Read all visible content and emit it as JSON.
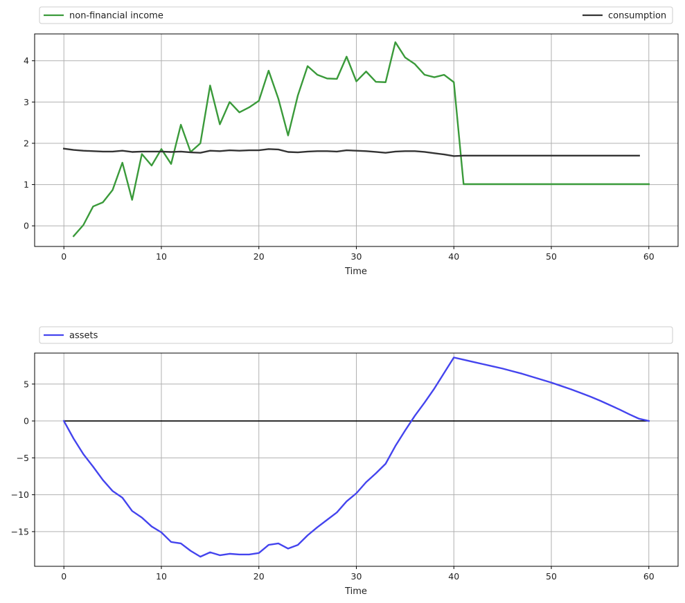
{
  "chart_data": [
    {
      "type": "line",
      "xlabel": "Time",
      "ylabel": "",
      "xlim": [
        -3,
        63
      ],
      "ylim": [
        -0.5,
        4.65
      ],
      "xticks": [
        0,
        10,
        20,
        30,
        40,
        50,
        60
      ],
      "yticks": [
        0,
        1,
        2,
        3,
        4
      ],
      "grid": true,
      "legend_placement": "above",
      "series": [
        {
          "name": "non-financial income",
          "color": "#3a9a3a",
          "x": [
            1,
            2,
            3,
            4,
            5,
            6,
            7,
            8,
            9,
            10,
            11,
            12,
            13,
            14,
            15,
            16,
            17,
            18,
            19,
            20,
            21,
            22,
            23,
            24,
            25,
            26,
            27,
            28,
            29,
            30,
            31,
            32,
            33,
            34,
            35,
            36,
            37,
            38,
            39,
            40,
            41,
            42,
            43,
            44,
            45,
            46,
            47,
            48,
            49,
            50,
            51,
            52,
            53,
            54,
            55,
            56,
            57,
            58,
            59,
            60
          ],
          "values": [
            -0.25,
            0.02,
            0.47,
            0.57,
            0.87,
            1.53,
            0.63,
            1.74,
            1.46,
            1.86,
            1.5,
            2.45,
            1.79,
            2.0,
            3.4,
            2.46,
            3.0,
            2.75,
            2.87,
            3.03,
            3.76,
            3.08,
            2.19,
            3.16,
            3.87,
            3.66,
            3.57,
            3.56,
            4.1,
            3.5,
            3.74,
            3.49,
            3.48,
            4.45,
            4.08,
            3.92,
            3.66,
            3.6,
            3.66,
            3.48,
            1.01,
            1.01,
            1.01,
            1.01,
            1.01,
            1.01,
            1.01,
            1.01,
            1.01,
            1.01,
            1.01,
            1.01,
            1.01,
            1.01,
            1.01,
            1.01,
            1.01,
            1.01,
            1.01,
            1.01
          ]
        },
        {
          "name": "consumption",
          "color": "#333333",
          "x": [
            0,
            1,
            2,
            3,
            4,
            5,
            6,
            7,
            8,
            9,
            10,
            11,
            12,
            13,
            14,
            15,
            16,
            17,
            18,
            19,
            20,
            21,
            22,
            23,
            24,
            25,
            26,
            27,
            28,
            29,
            30,
            31,
            32,
            33,
            34,
            35,
            36,
            37,
            38,
            39,
            40,
            41,
            42,
            43,
            44,
            45,
            46,
            47,
            48,
            49,
            50,
            51,
            52,
            53,
            54,
            55,
            56,
            57,
            58,
            59
          ],
          "values": [
            1.87,
            1.84,
            1.82,
            1.81,
            1.8,
            1.8,
            1.82,
            1.79,
            1.8,
            1.8,
            1.8,
            1.79,
            1.8,
            1.78,
            1.77,
            1.82,
            1.81,
            1.83,
            1.82,
            1.83,
            1.83,
            1.86,
            1.85,
            1.79,
            1.78,
            1.8,
            1.81,
            1.81,
            1.8,
            1.83,
            1.82,
            1.81,
            1.79,
            1.77,
            1.8,
            1.81,
            1.81,
            1.79,
            1.76,
            1.73,
            1.69,
            1.7,
            1.7,
            1.7,
            1.7,
            1.7,
            1.7,
            1.7,
            1.7,
            1.7,
            1.7,
            1.7,
            1.7,
            1.7,
            1.7,
            1.7,
            1.7,
            1.7,
            1.7,
            1.7
          ]
        }
      ]
    },
    {
      "type": "line",
      "xlabel": "Time",
      "ylabel": "",
      "xlim": [
        -3,
        63
      ],
      "ylim": [
        -19.7,
        9.2
      ],
      "xticks": [
        0,
        10,
        20,
        30,
        40,
        50,
        60
      ],
      "yticks": [
        5,
        0,
        -5,
        -10,
        -15
      ],
      "tick_labels_y": [
        "5",
        "0",
        "−5",
        "−10",
        "−15"
      ],
      "grid": true,
      "legend_placement": "above",
      "reference_line": {
        "y": 0,
        "color": "#000000"
      },
      "series": [
        {
          "name": "assets",
          "color": "#4444ee",
          "x": [
            0,
            1,
            2,
            3,
            4,
            5,
            6,
            7,
            8,
            9,
            10,
            11,
            12,
            13,
            14,
            15,
            16,
            17,
            18,
            19,
            20,
            21,
            22,
            23,
            24,
            25,
            26,
            27,
            28,
            29,
            30,
            31,
            32,
            33,
            34,
            35,
            36,
            37,
            38,
            39,
            40,
            41,
            42,
            43,
            44,
            45,
            46,
            47,
            48,
            49,
            50,
            51,
            52,
            53,
            54,
            55,
            56,
            57,
            58,
            59,
            60
          ],
          "values": [
            0,
            -2.4,
            -4.5,
            -6.2,
            -8.0,
            -9.5,
            -10.4,
            -12.2,
            -13.1,
            -14.3,
            -15.1,
            -16.4,
            -16.6,
            -17.6,
            -18.4,
            -17.8,
            -18.2,
            -18.0,
            -18.1,
            -18.1,
            -17.9,
            -16.8,
            -16.6,
            -17.3,
            -16.8,
            -15.5,
            -14.4,
            -13.4,
            -12.4,
            -10.9,
            -9.8,
            -8.3,
            -7.1,
            -5.8,
            -3.4,
            -1.3,
            0.7,
            2.5,
            4.4,
            6.5,
            8.6,
            8.3,
            8.0,
            7.7,
            7.4,
            7.1,
            6.75,
            6.4,
            6.0,
            5.6,
            5.2,
            4.75,
            4.3,
            3.8,
            3.3,
            2.75,
            2.15,
            1.55,
            0.9,
            0.3,
            0.0
          ]
        }
      ]
    }
  ]
}
